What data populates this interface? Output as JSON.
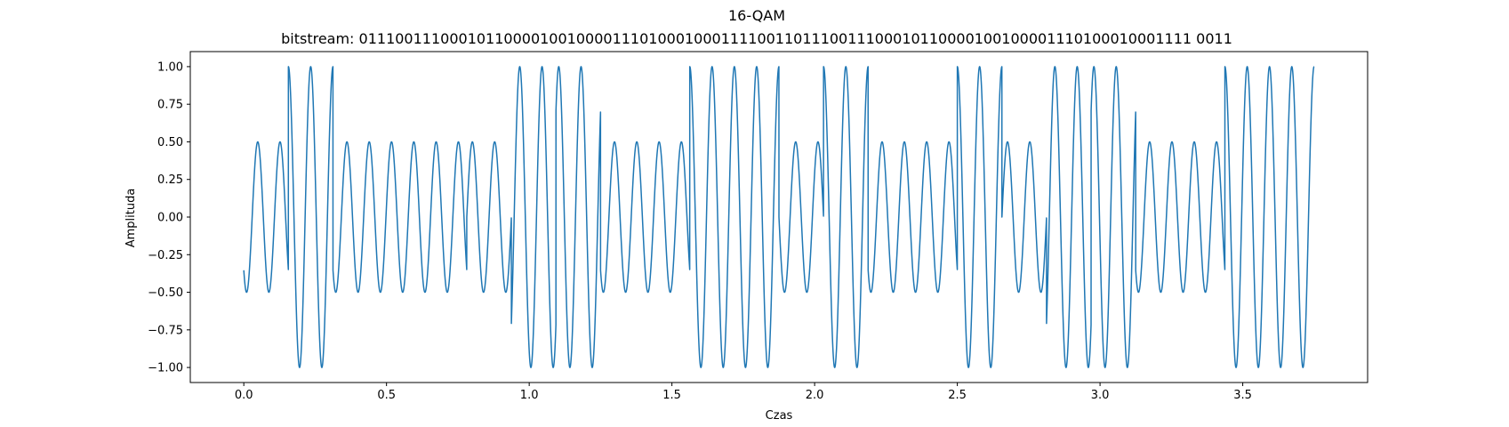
{
  "chart_data": {
    "type": "line",
    "title": "16-QAM",
    "subtitle": "bitstream: 01110011100010110000100100001110100010001111001101110011100010110000100100001110100010001111 0011",
    "bitstream": "0111001110001011000010010000111010001000111100110111001110001011000010010000111010001000111100 11",
    "xlabel": "Czas",
    "ylabel": "Amplituda",
    "xlim": [
      -0.1875,
      3.9375
    ],
    "ylim": [
      -1.1,
      1.1
    ],
    "xticks": [
      0.0,
      0.5,
      1.0,
      1.5,
      2.0,
      2.5,
      3.0,
      3.5
    ],
    "xtick_labels": [
      "0.0",
      "0.5",
      "1.0",
      "1.5",
      "2.0",
      "2.5",
      "3.0",
      "3.5"
    ],
    "yticks": [
      -1.0,
      -0.75,
      -0.5,
      -0.25,
      0.0,
      0.25,
      0.5,
      0.75,
      1.0
    ],
    "ytick_labels": [
      "−1.00",
      "−0.75",
      "−0.50",
      "−0.25",
      "0.00",
      "0.25",
      "0.50",
      "0.75",
      "1.00"
    ],
    "grid": false,
    "line_color": "#1f77b4",
    "symbol_duration": 0.15625,
    "cycles_per_symbol": 2,
    "symbols": [
      {
        "t_start": 0.0,
        "amplitude": 0.5,
        "phase_deg": 225
      },
      {
        "t_start": 0.15625,
        "amplitude": 1.0,
        "phase_deg": 90
      },
      {
        "t_start": 0.3125,
        "amplitude": 0.5,
        "phase_deg": 225
      },
      {
        "t_start": 0.46875,
        "amplitude": 0.5,
        "phase_deg": 225
      },
      {
        "t_start": 0.625,
        "amplitude": 0.5,
        "phase_deg": 225
      },
      {
        "t_start": 0.78125,
        "amplitude": 0.5,
        "phase_deg": 0
      },
      {
        "t_start": 0.9375,
        "amplitude": 1.0,
        "phase_deg": 315
      },
      {
        "t_start": 1.09375,
        "amplitude": 1.0,
        "phase_deg": 45
      },
      {
        "t_start": 1.25,
        "amplitude": 0.5,
        "phase_deg": 225
      },
      {
        "t_start": 1.40625,
        "amplitude": 0.5,
        "phase_deg": 225
      },
      {
        "t_start": 1.5625,
        "amplitude": 1.0,
        "phase_deg": 90
      },
      {
        "t_start": 1.71875,
        "amplitude": 1.0,
        "phase_deg": 90
      },
      {
        "t_start": 1.875,
        "amplitude": 0.5,
        "phase_deg": 180
      },
      {
        "t_start": 2.03125,
        "amplitude": 1.0,
        "phase_deg": 90
      },
      {
        "t_start": 2.1875,
        "amplitude": 0.5,
        "phase_deg": 225
      },
      {
        "t_start": 2.34375,
        "amplitude": 0.5,
        "phase_deg": 225
      },
      {
        "t_start": 2.5,
        "amplitude": 1.0,
        "phase_deg": 90
      },
      {
        "t_start": 2.65625,
        "amplitude": 0.5,
        "phase_deg": 0
      },
      {
        "t_start": 2.8125,
        "amplitude": 1.0,
        "phase_deg": 315
      },
      {
        "t_start": 2.96875,
        "amplitude": 1.0,
        "phase_deg": 45
      },
      {
        "t_start": 3.125,
        "amplitude": 0.5,
        "phase_deg": 225
      },
      {
        "t_start": 3.28125,
        "amplitude": 0.5,
        "phase_deg": 225
      },
      {
        "t_start": 3.4375,
        "amplitude": 1.0,
        "phase_deg": 90
      },
      {
        "t_start": 3.59375,
        "amplitude": 1.0,
        "phase_deg": 90
      }
    ]
  }
}
